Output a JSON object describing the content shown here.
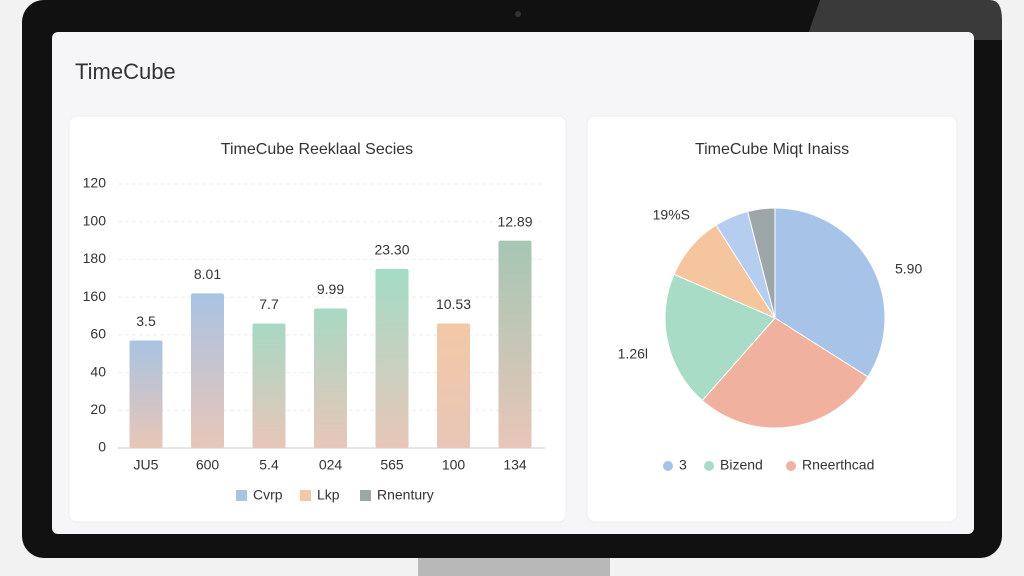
{
  "header": {
    "title": "TimeCube"
  },
  "chart_data": [
    {
      "type": "bar",
      "title": "TimeCube Reeklaal Secies",
      "categories": [
        "JU5",
        "600",
        "5.4",
        "024",
        "565",
        "100",
        "134"
      ],
      "values": [
        57,
        82,
        66,
        74,
        95,
        66,
        110
      ],
      "colors": [
        "#a9c3e3",
        "#a9c3e3",
        "#a8d8c4",
        "#a8d8c4",
        "#a3dcc6",
        "#f2c8a6",
        "#a6c6b4"
      ],
      "annotations": [
        "3.5",
        "8.01",
        "7.7",
        "9.99",
        "23.30",
        "10.53",
        "12.89"
      ],
      "ylim": [
        0,
        140
      ],
      "yticks": [
        0,
        20,
        40,
        60,
        {
          "value": 80,
          "label": "160"
        },
        {
          "value": 100,
          "label": "180"
        },
        {
          "value": 120,
          "label": "100"
        },
        {
          "value": 140,
          "label": "120"
        }
      ],
      "grid": true,
      "legend": [
        {
          "name": "Cvrp",
          "color": "#a9c3e3"
        },
        {
          "name": "Lkp",
          "color": "#f2c8a6"
        },
        {
          "name": "Rnentury",
          "color": "#9ea7a8"
        }
      ]
    },
    {
      "type": "pie",
      "title": "TimeCube Miqt Inaiss",
      "values": [
        34,
        27.5,
        20,
        9.5,
        5,
        4
      ],
      "colors": [
        "#a7c3e8",
        "#f0b29e",
        "#a8dcc6",
        "#f5c59e",
        "#b5cdef",
        "#9ea7a8"
      ],
      "annotations": [
        "5.90",
        "1.26l",
        "19%S"
      ],
      "legend": [
        {
          "name": "3",
          "color": "#a7c3e8"
        },
        {
          "name": "Bizend",
          "color": "#a8dcc6"
        },
        {
          "name": "Rneerthcad",
          "color": "#f0b29e"
        }
      ]
    }
  ]
}
